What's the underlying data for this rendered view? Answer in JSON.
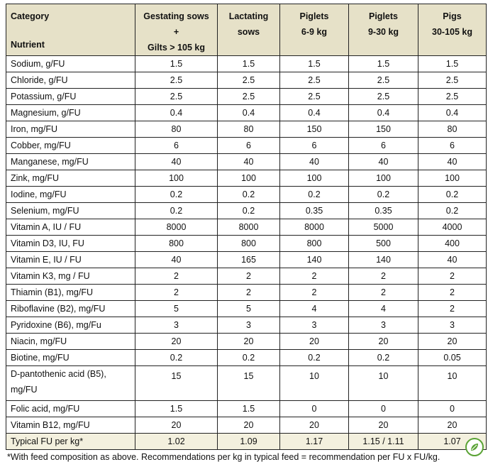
{
  "header": {
    "category": "Category",
    "nutrient": "Nutrient",
    "columns": [
      {
        "line1": "Gestating sows",
        "line2": "+",
        "line3": "Gilts > 105 kg"
      },
      {
        "line1": "Lactating",
        "line2": "sows",
        "line3": ""
      },
      {
        "line1": "Piglets",
        "line2": "6-9 kg",
        "line3": ""
      },
      {
        "line1": "Piglets",
        "line2": "9-30 kg",
        "line3": ""
      },
      {
        "line1": "Pigs",
        "line2": "30-105 kg",
        "line3": ""
      }
    ]
  },
  "rows": [
    {
      "label": "Sodium, g/FU",
      "values": [
        "1.5",
        "1.5",
        "1.5",
        "1.5",
        "1.5"
      ]
    },
    {
      "label": "Chloride, g/FU",
      "values": [
        "2.5",
        "2.5",
        "2.5",
        "2.5",
        "2.5"
      ]
    },
    {
      "label": "Potassium, g/FU",
      "values": [
        "2.5",
        "2.5",
        "2.5",
        "2.5",
        "2.5"
      ]
    },
    {
      "label": "Magnesium, g/FU",
      "values": [
        "0.4",
        "0.4",
        "0.4",
        "0.4",
        "0.4"
      ]
    },
    {
      "label": "Iron, mg/FU",
      "values": [
        "80",
        "80",
        "150",
        "150",
        "80"
      ]
    },
    {
      "label": "Cobber, mg/FU",
      "values": [
        "6",
        "6",
        "6",
        "6",
        "6"
      ]
    },
    {
      "label": "Manganese, mg/FU",
      "values": [
        "40",
        "40",
        "40",
        "40",
        "40"
      ]
    },
    {
      "label": "Zink, mg/FU",
      "values": [
        "100",
        "100",
        "100",
        "100",
        "100"
      ]
    },
    {
      "label": "Iodine, mg/FU",
      "values": [
        "0.2",
        "0.2",
        "0.2",
        "0.2",
        "0.2"
      ]
    },
    {
      "label": "Selenium, mg/FU",
      "values": [
        "0.2",
        "0.2",
        "0.35",
        "0.35",
        "0.2"
      ]
    },
    {
      "label": "Vitamin A, IU / FU",
      "values": [
        "8000",
        "8000",
        "8000",
        "5000",
        "4000"
      ]
    },
    {
      "label": "Vitamin D3, IU, FU",
      "values": [
        "800",
        "800",
        "800",
        "500",
        "400"
      ]
    },
    {
      "label": "Vitamin E, IU / FU",
      "values": [
        "40",
        "165",
        "140",
        "140",
        "40"
      ]
    },
    {
      "label": "Vitamin K3, mg / FU",
      "values": [
        "2",
        "2",
        "2",
        "2",
        "2"
      ]
    },
    {
      "label": "Thiamin (B1), mg/FU",
      "values": [
        "2",
        "2",
        "2",
        "2",
        "2"
      ]
    },
    {
      "label": "Riboflavine (B2), mg/FU",
      "values": [
        "5",
        "5",
        "4",
        "4",
        "2"
      ]
    },
    {
      "label": "Pyridoxine (B6), mg/Fu",
      "values": [
        "3",
        "3",
        "3",
        "3",
        "3"
      ]
    },
    {
      "label": "Niacin, mg/FU",
      "values": [
        "20",
        "20",
        "20",
        "20",
        "20"
      ]
    },
    {
      "label": "Biotine, mg/FU",
      "values": [
        "0.2",
        "0.2",
        "0.2",
        "0.2",
        "0.05"
      ]
    },
    {
      "label": "D-pantothenic acid (B5), mg/FU",
      "values": [
        "15",
        "15",
        "10",
        "10",
        "10"
      ]
    },
    {
      "label": "Folic acid, mg/FU",
      "values": [
        "1.5",
        "1.5",
        "0",
        "0",
        "0"
      ]
    },
    {
      "label": "Vitamin B12, mg/FU",
      "values": [
        "20",
        "20",
        "20",
        "20",
        "20"
      ]
    },
    {
      "label": "Typical FU per kg*",
      "values": [
        "1.02",
        "1.09",
        "1.17",
        "1.15 / 1.11",
        "1.07"
      ]
    }
  ],
  "footnote": "*With feed composition as above. Recommendations per kg in typical feed = recommendation per FU x FU/kg.",
  "badge_icon": "leaf-badge-icon",
  "accent_color": "#e6e1c8"
}
